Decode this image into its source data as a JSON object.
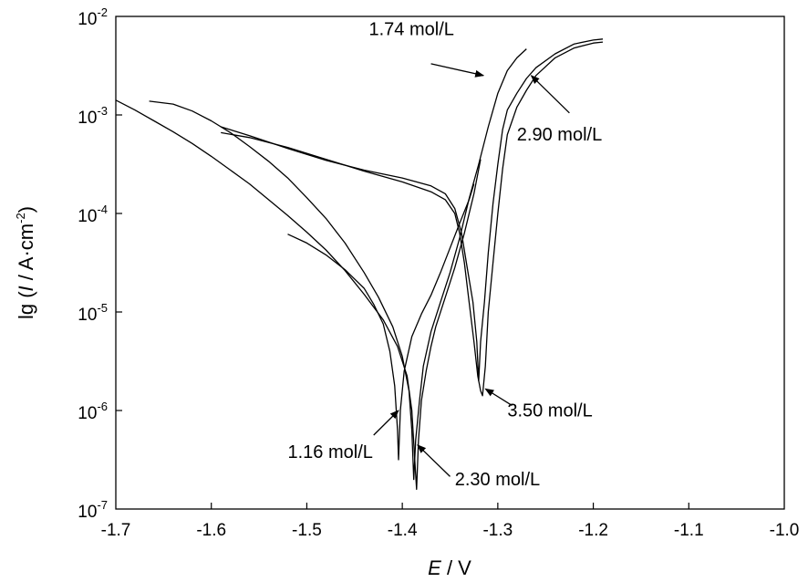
{
  "chart_data": {
    "type": "line",
    "xlabel_italic": "E",
    "xlabel_rest": " / V",
    "ylabel_parts": {
      "prefix": "lg (",
      "italic": "I",
      "middle": " / A·cm",
      "sup": "-2",
      "suffix": ")"
    },
    "xlim": [
      -1.7,
      -1.0
    ],
    "ylim_log10": [
      -7,
      -2
    ],
    "x_ticks": [
      -1.7,
      -1.6,
      -1.5,
      -1.4,
      -1.3,
      -1.2,
      -1.1,
      -1.0
    ],
    "x_tick_labels": [
      "-1.7",
      "-1.6",
      "-1.5",
      "-1.4",
      "-1.3",
      "-1.2",
      "-1.1",
      "-1.0"
    ],
    "y_ticks": [
      {
        "exp": -2,
        "base": "10",
        "sup": "-2"
      },
      {
        "exp": -3,
        "base": "10",
        "sup": "-3"
      },
      {
        "exp": -4,
        "base": "10",
        "sup": "-4"
      },
      {
        "exp": -5,
        "base": "10",
        "sup": "-5"
      },
      {
        "exp": -6,
        "base": "10",
        "sup": "-6"
      },
      {
        "exp": -7,
        "base": "10",
        "sup": "-7"
      }
    ],
    "grid": false,
    "series": [
      {
        "name": "1.16 mol/L",
        "points": [
          [
            -1.52,
            -4.21
          ],
          [
            -1.5,
            -4.3
          ],
          [
            -1.48,
            -4.42
          ],
          [
            -1.46,
            -4.57
          ],
          [
            -1.44,
            -4.76
          ],
          [
            -1.43,
            -4.92
          ],
          [
            -1.42,
            -5.12
          ],
          [
            -1.413,
            -5.4
          ],
          [
            -1.408,
            -5.75
          ],
          [
            -1.405,
            -6.2
          ],
          [
            -1.404,
            -6.5
          ],
          [
            -1.402,
            -6.0
          ],
          [
            -1.398,
            -5.6
          ],
          [
            -1.39,
            -5.25
          ],
          [
            -1.38,
            -5.02
          ],
          [
            -1.37,
            -4.83
          ],
          [
            -1.36,
            -4.6
          ],
          [
            -1.35,
            -4.35
          ],
          [
            -1.34,
            -4.1
          ],
          [
            -1.33,
            -3.86
          ],
          [
            -1.325,
            -3.7
          ]
        ]
      },
      {
        "name": "1.74 mol/L",
        "points": [
          [
            -1.665,
            -2.86
          ],
          [
            -1.64,
            -2.89
          ],
          [
            -1.62,
            -2.96
          ],
          [
            -1.6,
            -3.06
          ],
          [
            -1.58,
            -3.18
          ],
          [
            -1.56,
            -3.32
          ],
          [
            -1.54,
            -3.47
          ],
          [
            -1.52,
            -3.64
          ],
          [
            -1.5,
            -3.84
          ],
          [
            -1.48,
            -4.05
          ],
          [
            -1.46,
            -4.3
          ],
          [
            -1.44,
            -4.6
          ],
          [
            -1.425,
            -4.85
          ],
          [
            -1.41,
            -5.15
          ],
          [
            -1.4,
            -5.45
          ],
          [
            -1.393,
            -5.8
          ],
          [
            -1.39,
            -6.2
          ],
          [
            -1.388,
            -6.7
          ],
          [
            -1.386,
            -6.3
          ],
          [
            -1.382,
            -5.9
          ],
          [
            -1.378,
            -5.55
          ],
          [
            -1.37,
            -5.2
          ],
          [
            -1.36,
            -4.9
          ],
          [
            -1.35,
            -4.6
          ],
          [
            -1.34,
            -4.25
          ],
          [
            -1.33,
            -3.85
          ],
          [
            -1.32,
            -3.5
          ],
          [
            -1.31,
            -3.12
          ],
          [
            -1.3,
            -2.78
          ],
          [
            -1.29,
            -2.55
          ],
          [
            -1.28,
            -2.42
          ],
          [
            -1.27,
            -2.33
          ]
        ]
      },
      {
        "name": "2.30 mol/L",
        "points": [
          [
            -1.7,
            -2.85
          ],
          [
            -1.68,
            -2.95
          ],
          [
            -1.66,
            -3.06
          ],
          [
            -1.64,
            -3.17
          ],
          [
            -1.62,
            -3.29
          ],
          [
            -1.6,
            -3.42
          ],
          [
            -1.58,
            -3.56
          ],
          [
            -1.56,
            -3.7
          ],
          [
            -1.54,
            -3.86
          ],
          [
            -1.52,
            -4.02
          ],
          [
            -1.5,
            -4.19
          ],
          [
            -1.48,
            -4.37
          ],
          [
            -1.46,
            -4.58
          ],
          [
            -1.44,
            -4.82
          ],
          [
            -1.42,
            -5.08
          ],
          [
            -1.405,
            -5.35
          ],
          [
            -1.395,
            -5.65
          ],
          [
            -1.39,
            -6.0
          ],
          [
            -1.387,
            -6.5
          ],
          [
            -1.385,
            -6.8
          ],
          [
            -1.383,
            -6.3
          ],
          [
            -1.38,
            -5.9
          ],
          [
            -1.375,
            -5.6
          ],
          [
            -1.37,
            -5.35
          ],
          [
            -1.365,
            -5.15
          ],
          [
            -1.355,
            -4.85
          ],
          [
            -1.345,
            -4.55
          ],
          [
            -1.335,
            -4.2
          ],
          [
            -1.325,
            -3.8
          ],
          [
            -1.318,
            -3.45
          ]
        ]
      },
      {
        "name": "2.90 mol/L",
        "points": [
          [
            -1.59,
            -3.12
          ],
          [
            -1.56,
            -3.21
          ],
          [
            -1.52,
            -3.34
          ],
          [
            -1.48,
            -3.46
          ],
          [
            -1.44,
            -3.56
          ],
          [
            -1.4,
            -3.64
          ],
          [
            -1.37,
            -3.72
          ],
          [
            -1.355,
            -3.8
          ],
          [
            -1.345,
            -3.95
          ],
          [
            -1.338,
            -4.2
          ],
          [
            -1.332,
            -4.55
          ],
          [
            -1.326,
            -4.9
          ],
          [
            -1.322,
            -5.3
          ],
          [
            -1.32,
            -5.7
          ],
          [
            -1.318,
            -5.3
          ],
          [
            -1.314,
            -4.9
          ],
          [
            -1.31,
            -4.4
          ],
          [
            -1.305,
            -3.9
          ],
          [
            -1.3,
            -3.5
          ],
          [
            -1.295,
            -3.15
          ],
          [
            -1.29,
            -2.95
          ],
          [
            -1.28,
            -2.78
          ],
          [
            -1.27,
            -2.63
          ],
          [
            -1.26,
            -2.52
          ],
          [
            -1.24,
            -2.38
          ],
          [
            -1.22,
            -2.28
          ],
          [
            -1.2,
            -2.24
          ],
          [
            -1.19,
            -2.23
          ]
        ]
      },
      {
        "name": "3.50 mol/L",
        "points": [
          [
            -1.59,
            -3.18
          ],
          [
            -1.56,
            -3.23
          ],
          [
            -1.52,
            -3.33
          ],
          [
            -1.48,
            -3.45
          ],
          [
            -1.44,
            -3.57
          ],
          [
            -1.4,
            -3.68
          ],
          [
            -1.37,
            -3.78
          ],
          [
            -1.355,
            -3.86
          ],
          [
            -1.345,
            -4.0
          ],
          [
            -1.34,
            -4.2
          ],
          [
            -1.335,
            -4.5
          ],
          [
            -1.33,
            -4.9
          ],
          [
            -1.325,
            -5.3
          ],
          [
            -1.321,
            -5.65
          ],
          [
            -1.318,
            -5.8
          ],
          [
            -1.316,
            -5.85
          ],
          [
            -1.313,
            -5.55
          ],
          [
            -1.31,
            -5.0
          ],
          [
            -1.305,
            -4.5
          ],
          [
            -1.3,
            -4.0
          ],
          [
            -1.295,
            -3.55
          ],
          [
            -1.29,
            -3.2
          ],
          [
            -1.28,
            -2.92
          ],
          [
            -1.27,
            -2.75
          ],
          [
            -1.26,
            -2.6
          ],
          [
            -1.24,
            -2.42
          ],
          [
            -1.22,
            -2.32
          ],
          [
            -1.2,
            -2.27
          ],
          [
            -1.19,
            -2.26
          ]
        ]
      }
    ],
    "annotations": [
      {
        "text": "1.74 mol/L",
        "text_x": -1.435,
        "text_y": -2.19,
        "arrow_from": [
          -1.37,
          -2.48
        ],
        "arrow_to": [
          -1.315,
          -2.6
        ]
      },
      {
        "text": "2.90 mol/L",
        "text_x": -1.28,
        "text_y": -3.26,
        "arrow_from": [
          -1.225,
          -2.98
        ],
        "arrow_to": [
          -1.265,
          -2.6
        ]
      },
      {
        "text": "3.50 mol/L",
        "text_x": -1.29,
        "text_y": -6.06,
        "arrow_from": [
          -1.285,
          -5.95
        ],
        "arrow_to": [
          -1.313,
          -5.78
        ]
      },
      {
        "text": "1.16 mol/L",
        "text_x": -1.52,
        "text_y": -6.48,
        "arrow_from": [
          -1.43,
          -6.25
        ],
        "arrow_to": [
          -1.404,
          -6.0
        ]
      },
      {
        "text": "2.30 mol/L",
        "text_x": -1.345,
        "text_y": -6.76,
        "arrow_from": [
          -1.35,
          -6.67
        ],
        "arrow_to": [
          -1.384,
          -6.35
        ]
      }
    ]
  }
}
